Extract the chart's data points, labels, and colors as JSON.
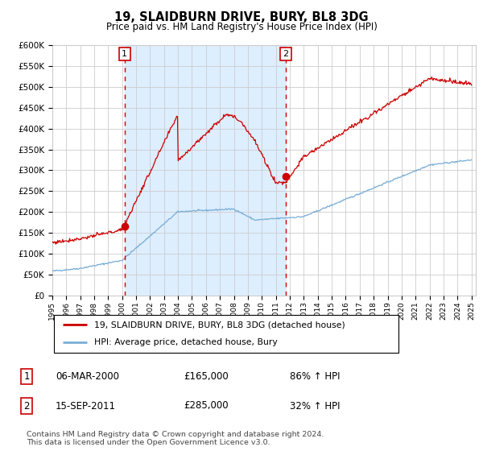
{
  "title": "19, SLAIDBURN DRIVE, BURY, BL8 3DG",
  "subtitle": "Price paid vs. HM Land Registry's House Price Index (HPI)",
  "legend_line1": "19, SLAIDBURN DRIVE, BURY, BL8 3DG (detached house)",
  "legend_line2": "HPI: Average price, detached house, Bury",
  "annotation1_date": "06-MAR-2000",
  "annotation1_price": 165000,
  "annotation1_hpi": "86% ↑ HPI",
  "annotation2_date": "15-SEP-2011",
  "annotation2_price": 285000,
  "annotation2_hpi": "32% ↑ HPI",
  "footer": "Contains HM Land Registry data © Crown copyright and database right 2024.\nThis data is licensed under the Open Government Licence v3.0.",
  "red_color": "#cc0000",
  "blue_color": "#7aaed6",
  "shaded_color": "#ddeeff",
  "grid_color": "#cccccc",
  "ylim": [
    0,
    600000
  ],
  "yticks": [
    0,
    50000,
    100000,
    150000,
    200000,
    250000,
    300000,
    350000,
    400000,
    450000,
    500000,
    550000,
    600000
  ],
  "purchase1_year": 2000.18,
  "purchase2_year": 2011.71
}
